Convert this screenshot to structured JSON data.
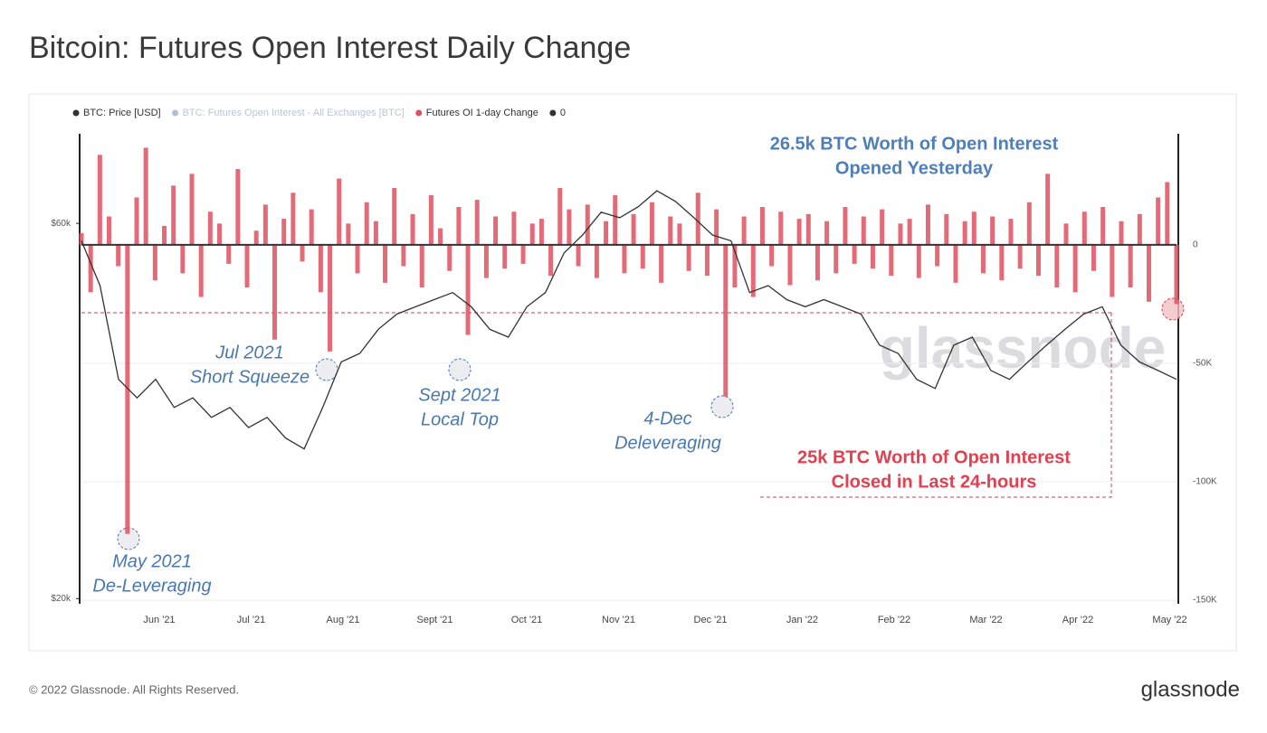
{
  "chart_data": {
    "type": "bar-line",
    "title": "Bitcoin: Futures Open Interest Daily Change",
    "footer": "© 2022 Glassnode. All Rights Reserved.",
    "logo": "glassnode",
    "watermark": "glassnode",
    "legend": [
      {
        "name": "BTC: Price [USD]",
        "color": "#333333"
      },
      {
        "name": "BTC: Futures Open Interest - All Exchanges [BTC]",
        "color": "#aebfd6"
      },
      {
        "name": "Futures OI 1-day Change",
        "color": "#e0505f"
      },
      {
        "name": "0",
        "color": "#333333"
      }
    ],
    "x_labels": [
      "Jun '21",
      "Jul '21",
      "Aug '21",
      "Sept '21",
      "Oct '21",
      "Nov '21",
      "Dec '21",
      "Jan '22",
      "Feb '22",
      "Mar '22",
      "Apr '22",
      "May '22"
    ],
    "price": {
      "name": "BTC: Price [USD]",
      "color": "#333333",
      "values": [
        57000,
        50000,
        38000,
        36000,
        38000,
        35000,
        36000,
        34000,
        35000,
        33000,
        34000,
        32000,
        31000,
        35000,
        40000,
        41000,
        44000,
        46000,
        47000,
        48000,
        49000,
        47000,
        44000,
        43000,
        47000,
        49000,
        55000,
        58000,
        62000,
        61000,
        63000,
        66000,
        64000,
        61000,
        58000,
        57000,
        49000,
        50000,
        48000,
        47000,
        48000,
        47000,
        46000,
        42000,
        41000,
        38000,
        37000,
        42000,
        43000,
        39000,
        38000,
        40000,
        42000,
        44000,
        46000,
        47000,
        42000,
        40000,
        39000,
        38000
      ]
    },
    "oi_change": {
      "name": "Futures OI 1-day Change",
      "color": "#e0505f",
      "values": [
        5000,
        -20000,
        38000,
        12000,
        -9000,
        -122000,
        20000,
        41000,
        -15000,
        8000,
        25000,
        -12000,
        30000,
        -22000,
        14000,
        9000,
        -8000,
        32000,
        -18000,
        6000,
        17000,
        -40000,
        11000,
        22000,
        -7000,
        15000,
        -20000,
        -45000,
        28000,
        9000,
        -12000,
        18000,
        10000,
        -16000,
        24000,
        -9000,
        13000,
        -18000,
        21000,
        7000,
        -11000,
        16000,
        -38000,
        19000,
        -14000,
        12000,
        -10000,
        14000,
        -8000,
        9000,
        11000,
        -13000,
        24000,
        15000,
        -9000,
        17000,
        -14000,
        10000,
        21000,
        -12000,
        13000,
        -10000,
        18000,
        -16000,
        12000,
        9000,
        -11000,
        22000,
        -13000,
        15000,
        -64000,
        -18000,
        12000,
        -22000,
        16000,
        -9000,
        14000,
        -17000,
        11000,
        13000,
        -15000,
        10000,
        -12000,
        16000,
        -8000,
        12000,
        -10000,
        15000,
        -13000,
        9000,
        11000,
        -14000,
        17000,
        -9000,
        13000,
        -16000,
        10000,
        14000,
        -12000,
        12000,
        -15000,
        11000,
        -10000,
        18000,
        -13000,
        30000,
        -18000,
        9000,
        -20000,
        14000,
        -11000,
        16000,
        -22000,
        10000,
        -18000,
        13000,
        -24000,
        20000,
        26500,
        -25000
      ]
    },
    "ylim": [
      19700,
      78000
    ],
    "log_y": true,
    "yticks": [
      {
        "value": 60000,
        "label": "$60k"
      },
      {
        "value": 20000,
        "label": "$20k"
      }
    ],
    "y2lim": [
      -151500,
      46900
    ],
    "y2ticks": [
      0,
      {
        "value": -50000,
        "label": "-50K"
      },
      {
        "value": -100000,
        "label": "-100K"
      },
      {
        "value": -150000,
        "label": "-150K"
      }
    ],
    "annotations": [
      {
        "lines": [
          "26.5k BTC Worth of Open Interest",
          "Opened Yesterday"
        ]
      },
      {
        "lines": [
          "Jul 2021",
          "Short Squeeze"
        ]
      },
      {
        "lines": [
          "Sept 2021",
          "Local Top"
        ]
      },
      {
        "lines": [
          "4-Dec",
          "Deleveraging"
        ]
      },
      {
        "lines": [
          "25k BTC Worth of Open Interest",
          "Closed in Last 24-hours"
        ]
      },
      {
        "lines": [
          "May 2021",
          "De-Leveraging"
        ]
      }
    ]
  }
}
